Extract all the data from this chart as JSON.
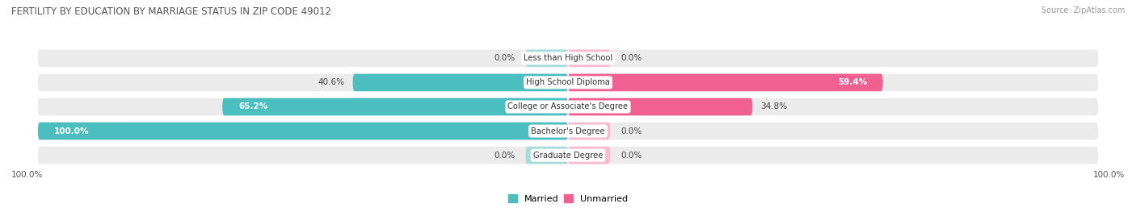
{
  "title": "FERTILITY BY EDUCATION BY MARRIAGE STATUS IN ZIP CODE 49012",
  "source": "Source: ZipAtlas.com",
  "categories": [
    "Less than High School",
    "High School Diploma",
    "College or Associate's Degree",
    "Bachelor's Degree",
    "Graduate Degree"
  ],
  "married_pct": [
    0.0,
    40.6,
    65.2,
    100.0,
    0.0
  ],
  "unmarried_pct": [
    0.0,
    59.4,
    34.8,
    0.0,
    0.0
  ],
  "married_color": "#4BBFC0",
  "married_color_light": "#A8DCDC",
  "unmarried_color": "#F06090",
  "unmarried_color_light": "#F8BBD0",
  "row_bg": "#EBEBEB",
  "title_color": "#555555",
  "source_color": "#999999",
  "figsize": [
    14.06,
    2.68
  ],
  "dpi": 100
}
